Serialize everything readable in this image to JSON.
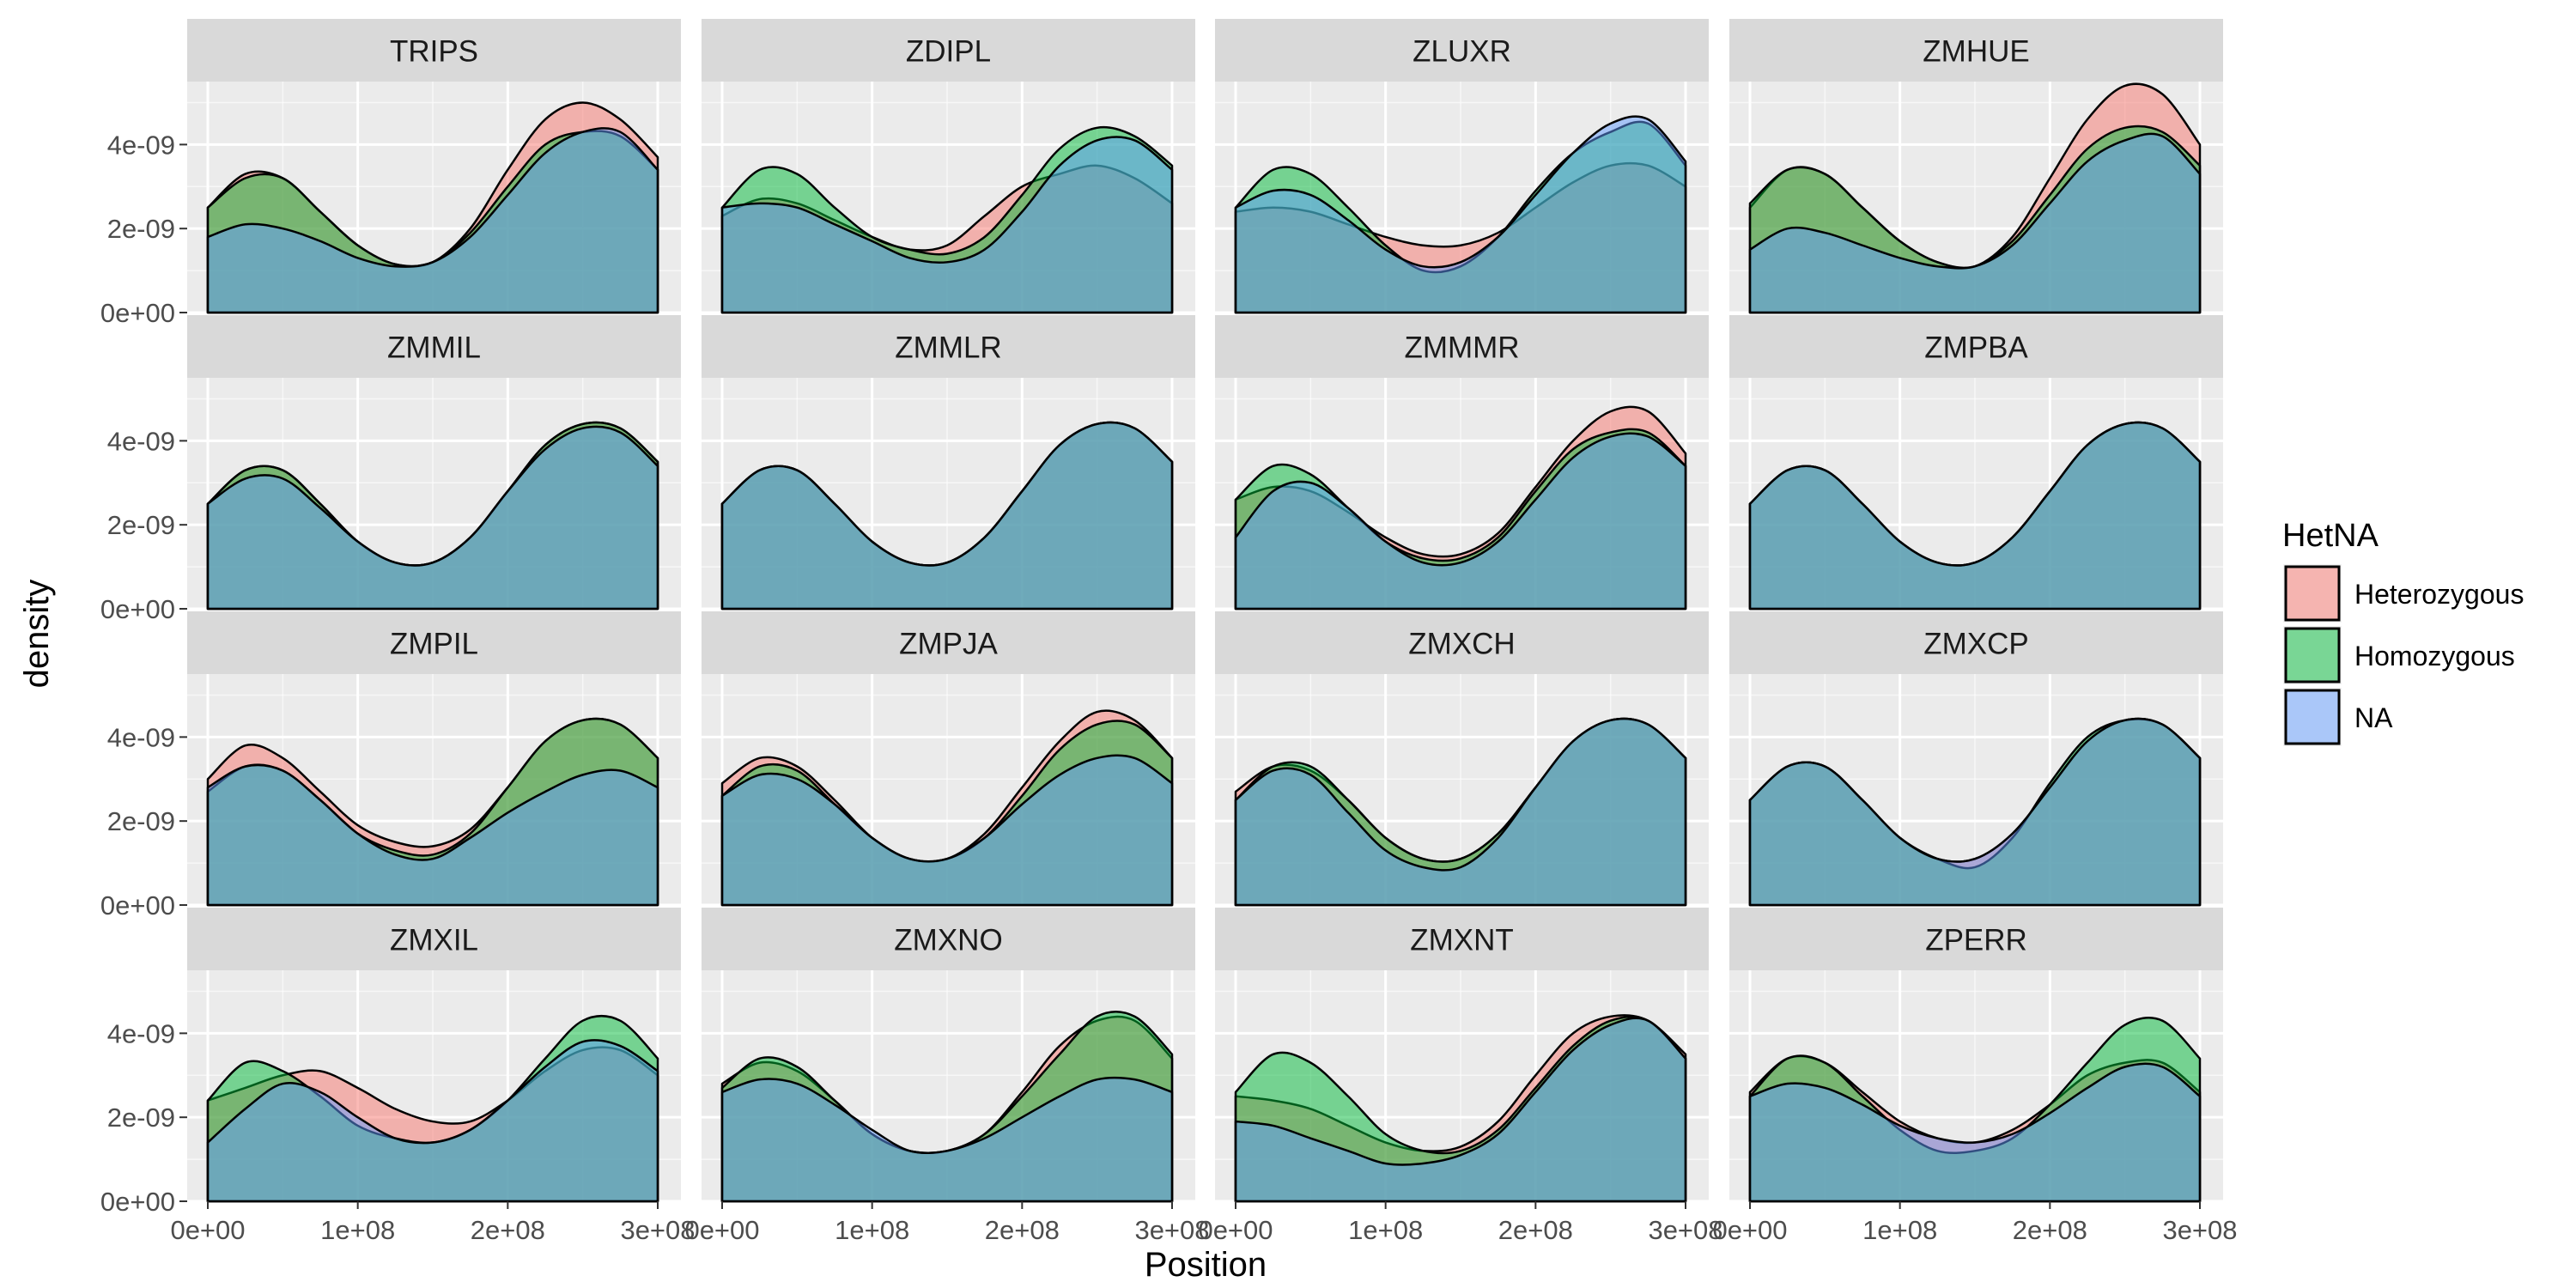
{
  "chart_data": {
    "type": "area",
    "xlabel": "Position",
    "ylabel": "density",
    "xlim": [
      0,
      300000000
    ],
    "ylim": [
      0,
      5.5e-09
    ],
    "x_ticks": [
      0,
      100000000,
      200000000,
      300000000
    ],
    "x_tick_labels": [
      "0e+00",
      "1e+08",
      "2e+08",
      "3e+08"
    ],
    "y_ticks": [
      0,
      2e-09,
      4e-09
    ],
    "y_tick_labels": [
      "0e+00",
      "2e-09",
      "4e-09"
    ],
    "x_sample": [
      0,
      25000000,
      50000000,
      75000000,
      100000000,
      125000000,
      150000000,
      175000000,
      200000000,
      225000000,
      250000000,
      275000000,
      300000000
    ],
    "legend": {
      "title": "HetNA",
      "position": "right",
      "entries": [
        {
          "label": "Heterozygous",
          "color": "#F8766D"
        },
        {
          "label": "Homozygous",
          "color": "#00BA38"
        },
        {
          "label": "NA",
          "color": "#619CFF"
        }
      ]
    },
    "colors": {
      "Heterozygous": "#F8766D",
      "Homozygous": "#00BA38",
      "NA": "#619CFF",
      "panel_bg": "#EBEBEB",
      "strip_bg": "#D9D9D9",
      "grid": "#FFFFFF"
    },
    "panels": [
      {
        "title": "TRIPS",
        "series": [
          {
            "group": "Heterozygous",
            "values": [
              2.5,
              3.3,
              3.2,
              2.4,
              1.6,
              1.15,
              1.2,
              2.0,
              3.4,
              4.6,
              5.0,
              4.6,
              3.7
            ]
          },
          {
            "group": "Homozygous",
            "values": [
              2.5,
              3.2,
              3.2,
              2.4,
              1.6,
              1.15,
              1.2,
              1.9,
              3.0,
              4.0,
              4.3,
              4.2,
              3.4
            ]
          },
          {
            "group": "NA",
            "values": [
              1.8,
              2.1,
              2.0,
              1.7,
              1.3,
              1.1,
              1.2,
              1.8,
              2.8,
              3.8,
              4.3,
              4.3,
              3.4
            ]
          }
        ]
      },
      {
        "title": "ZDIPL",
        "series": [
          {
            "group": "Heterozygous",
            "values": [
              2.3,
              2.7,
              2.6,
              2.2,
              1.8,
              1.5,
              1.6,
              2.3,
              3.0,
              3.3,
              3.5,
              3.2,
              2.6
            ]
          },
          {
            "group": "Homozygous",
            "values": [
              2.5,
              3.4,
              3.3,
              2.5,
              1.8,
              1.5,
              1.4,
              1.8,
              2.8,
              3.9,
              4.4,
              4.2,
              3.5
            ]
          },
          {
            "group": "NA",
            "values": [
              2.5,
              2.6,
              2.5,
              2.1,
              1.7,
              1.3,
              1.2,
              1.5,
              2.4,
              3.5,
              4.1,
              4.1,
              3.4
            ]
          }
        ]
      },
      {
        "title": "ZLUXR",
        "series": [
          {
            "group": "Heterozygous",
            "values": [
              2.4,
              2.5,
              2.4,
              2.1,
              1.8,
              1.6,
              1.6,
              1.9,
              2.5,
              3.1,
              3.5,
              3.5,
              3.0
            ]
          },
          {
            "group": "Homozygous",
            "values": [
              2.5,
              3.4,
              3.3,
              2.5,
              1.6,
              1.0,
              1.1,
              1.8,
              2.9,
              3.8,
              4.3,
              4.5,
              3.5
            ]
          },
          {
            "group": "NA",
            "values": [
              2.5,
              2.9,
              2.8,
              2.2,
              1.5,
              1.1,
              1.2,
              1.8,
              2.8,
              3.8,
              4.5,
              4.6,
              3.6
            ]
          }
        ]
      },
      {
        "title": "ZMHUE",
        "series": [
          {
            "group": "Heterozygous",
            "values": [
              2.5,
              3.4,
              3.3,
              2.5,
              1.7,
              1.2,
              1.1,
              1.8,
              3.2,
              4.6,
              5.4,
              5.2,
              4.0
            ]
          },
          {
            "group": "Homozygous",
            "values": [
              2.6,
              3.4,
              3.3,
              2.5,
              1.7,
              1.2,
              1.1,
              1.7,
              2.8,
              3.9,
              4.4,
              4.3,
              3.5
            ]
          },
          {
            "group": "NA",
            "values": [
              1.5,
              2.0,
              1.9,
              1.6,
              1.3,
              1.1,
              1.1,
              1.6,
              2.6,
              3.6,
              4.1,
              4.2,
              3.3
            ]
          }
        ]
      },
      {
        "title": "ZMMIL",
        "series": [
          {
            "group": "Heterozygous",
            "values": [
              2.5,
              3.3,
              3.3,
              2.5,
              1.6,
              1.1,
              1.1,
              1.7,
              2.8,
              3.9,
              4.4,
              4.3,
              3.5
            ]
          },
          {
            "group": "Homozygous",
            "values": [
              2.5,
              3.3,
              3.3,
              2.5,
              1.6,
              1.1,
              1.1,
              1.7,
              2.8,
              3.9,
              4.4,
              4.3,
              3.5
            ]
          },
          {
            "group": "NA",
            "values": [
              2.5,
              3.1,
              3.1,
              2.4,
              1.6,
              1.1,
              1.1,
              1.7,
              2.8,
              3.8,
              4.3,
              4.2,
              3.4
            ]
          }
        ]
      },
      {
        "title": "ZMMLR",
        "series": [
          {
            "group": "Heterozygous",
            "values": [
              2.5,
              3.3,
              3.3,
              2.5,
              1.6,
              1.1,
              1.1,
              1.7,
              2.8,
              3.9,
              4.4,
              4.3,
              3.5
            ]
          },
          {
            "group": "Homozygous",
            "values": [
              2.5,
              3.3,
              3.3,
              2.5,
              1.6,
              1.1,
              1.1,
              1.7,
              2.8,
              3.9,
              4.4,
              4.3,
              3.5
            ]
          },
          {
            "group": "NA",
            "values": [
              2.5,
              3.3,
              3.3,
              2.5,
              1.6,
              1.1,
              1.1,
              1.7,
              2.8,
              3.9,
              4.4,
              4.3,
              3.5
            ]
          }
        ]
      },
      {
        "title": "ZMMMR",
        "series": [
          {
            "group": "Heterozygous",
            "values": [
              2.6,
              2.9,
              2.8,
              2.3,
              1.7,
              1.3,
              1.3,
              1.8,
              2.9,
              4.0,
              4.7,
              4.7,
              3.7
            ]
          },
          {
            "group": "Homozygous",
            "values": [
              2.6,
              3.4,
              3.2,
              2.4,
              1.6,
              1.2,
              1.2,
              1.7,
              2.8,
              3.8,
              4.2,
              4.2,
              3.4
            ]
          },
          {
            "group": "NA",
            "values": [
              1.7,
              2.8,
              3.0,
              2.4,
              1.6,
              1.1,
              1.1,
              1.6,
              2.6,
              3.6,
              4.1,
              4.1,
              3.4
            ]
          }
        ]
      },
      {
        "title": "ZMPBA",
        "series": [
          {
            "group": "Heterozygous",
            "values": [
              2.5,
              3.3,
              3.3,
              2.5,
              1.6,
              1.1,
              1.1,
              1.7,
              2.8,
              3.9,
              4.4,
              4.3,
              3.5
            ]
          },
          {
            "group": "Homozygous",
            "values": [
              2.5,
              3.3,
              3.3,
              2.5,
              1.6,
              1.1,
              1.1,
              1.7,
              2.8,
              3.9,
              4.4,
              4.3,
              3.5
            ]
          },
          {
            "group": "NA",
            "values": [
              2.5,
              3.3,
              3.3,
              2.5,
              1.6,
              1.1,
              1.1,
              1.7,
              2.8,
              3.9,
              4.4,
              4.3,
              3.5
            ]
          }
        ]
      },
      {
        "title": "ZMPIL",
        "series": [
          {
            "group": "Heterozygous",
            "values": [
              3.0,
              3.8,
              3.5,
              2.7,
              1.9,
              1.5,
              1.4,
              1.8,
              2.8,
              3.9,
              4.4,
              4.3,
              3.5
            ]
          },
          {
            "group": "Homozygous",
            "values": [
              2.7,
              3.3,
              3.2,
              2.5,
              1.7,
              1.3,
              1.2,
              1.7,
              2.8,
              3.9,
              4.4,
              4.3,
              3.5
            ]
          },
          {
            "group": "NA",
            "values": [
              2.8,
              3.3,
              3.2,
              2.5,
              1.7,
              1.2,
              1.1,
              1.6,
              2.2,
              2.7,
              3.1,
              3.2,
              2.8
            ]
          }
        ]
      },
      {
        "title": "ZMPJA",
        "series": [
          {
            "group": "Heterozygous",
            "values": [
              2.9,
              3.5,
              3.3,
              2.5,
              1.6,
              1.1,
              1.1,
              1.7,
              2.8,
              3.9,
              4.6,
              4.4,
              3.5
            ]
          },
          {
            "group": "Homozygous",
            "values": [
              2.6,
              3.3,
              3.2,
              2.4,
              1.6,
              1.1,
              1.1,
              1.6,
              2.6,
              3.7,
              4.3,
              4.3,
              3.5
            ]
          },
          {
            "group": "NA",
            "values": [
              2.6,
              3.1,
              3.0,
              2.4,
              1.6,
              1.1,
              1.1,
              1.6,
              2.4,
              3.1,
              3.5,
              3.5,
              2.9
            ]
          }
        ]
      },
      {
        "title": "ZMXCH",
        "series": [
          {
            "group": "Heterozygous",
            "values": [
              2.7,
              3.3,
              3.2,
              2.5,
              1.6,
              1.1,
              1.1,
              1.7,
              2.8,
              3.9,
              4.4,
              4.3,
              3.5
            ]
          },
          {
            "group": "Homozygous",
            "values": [
              2.5,
              3.3,
              3.3,
              2.5,
              1.6,
              1.1,
              1.1,
              1.7,
              2.8,
              3.9,
              4.4,
              4.3,
              3.5
            ]
          },
          {
            "group": "NA",
            "values": [
              2.5,
              3.2,
              3.1,
              2.2,
              1.3,
              0.9,
              0.9,
              1.6,
              2.8,
              3.9,
              4.4,
              4.3,
              3.5
            ]
          }
        ]
      },
      {
        "title": "ZMXCP",
        "series": [
          {
            "group": "Heterozygous",
            "values": [
              2.5,
              3.3,
              3.3,
              2.5,
              1.6,
              1.1,
              1.1,
              1.7,
              2.8,
              3.9,
              4.4,
              4.3,
              3.5
            ]
          },
          {
            "group": "Homozygous",
            "values": [
              2.5,
              3.3,
              3.3,
              2.5,
              1.6,
              1.1,
              0.9,
              1.6,
              2.9,
              4.0,
              4.4,
              4.3,
              3.5
            ]
          },
          {
            "group": "NA",
            "values": [
              2.5,
              3.3,
              3.3,
              2.5,
              1.6,
              1.1,
              1.1,
              1.7,
              2.8,
              3.9,
              4.4,
              4.3,
              3.5
            ]
          }
        ]
      },
      {
        "title": "ZMXIL",
        "series": [
          {
            "group": "Heterozygous",
            "values": [
              2.4,
              2.7,
              3.0,
              3.1,
              2.7,
              2.2,
              1.9,
              1.9,
              2.4,
              3.1,
              3.6,
              3.6,
              3.0
            ]
          },
          {
            "group": "Homozygous",
            "values": [
              2.4,
              3.3,
              3.1,
              2.5,
              1.8,
              1.5,
              1.4,
              1.7,
              2.4,
              3.4,
              4.3,
              4.3,
              3.4
            ]
          },
          {
            "group": "NA",
            "values": [
              1.4,
              2.2,
              2.8,
              2.6,
              2.0,
              1.5,
              1.4,
              1.7,
              2.4,
              3.2,
              3.8,
              3.7,
              3.1
            ]
          }
        ]
      },
      {
        "title": "ZMXNO",
        "series": [
          {
            "group": "Heterozygous",
            "values": [
              2.8,
              3.3,
              3.1,
              2.4,
              1.6,
              1.2,
              1.2,
              1.6,
              2.6,
              3.7,
              4.3,
              4.3,
              3.4
            ]
          },
          {
            "group": "Homozygous",
            "values": [
              2.7,
              3.4,
              3.2,
              2.4,
              1.6,
              1.2,
              1.2,
              1.6,
              2.5,
              3.5,
              4.4,
              4.4,
              3.5
            ]
          },
          {
            "group": "NA",
            "values": [
              2.6,
              2.9,
              2.8,
              2.3,
              1.7,
              1.2,
              1.2,
              1.5,
              2.0,
              2.5,
              2.9,
              2.9,
              2.6
            ]
          }
        ]
      },
      {
        "title": "ZMXNT",
        "series": [
          {
            "group": "Heterozygous",
            "values": [
              2.5,
              2.4,
              2.2,
              1.8,
              1.4,
              1.2,
              1.3,
              1.9,
              3.0,
              4.0,
              4.4,
              4.3,
              3.5
            ]
          },
          {
            "group": "Homozygous",
            "values": [
              2.6,
              3.5,
              3.3,
              2.5,
              1.6,
              1.2,
              1.2,
              1.7,
              2.7,
              3.7,
              4.3,
              4.3,
              3.4
            ]
          },
          {
            "group": "NA",
            "values": [
              1.9,
              1.8,
              1.5,
              1.2,
              0.9,
              0.9,
              1.1,
              1.6,
              2.6,
              3.6,
              4.2,
              4.3,
              3.4
            ]
          }
        ]
      },
      {
        "title": "ZPERR",
        "series": [
          {
            "group": "Heterozygous",
            "values": [
              2.6,
              3.4,
              3.3,
              2.6,
              1.9,
              1.5,
              1.4,
              1.7,
              2.3,
              3.0,
              3.3,
              3.3,
              2.6
            ]
          },
          {
            "group": "Homozygous",
            "values": [
              2.5,
              3.4,
              3.3,
              2.5,
              1.7,
              1.2,
              1.2,
              1.5,
              2.3,
              3.3,
              4.2,
              4.3,
              3.4
            ]
          },
          {
            "group": "NA",
            "values": [
              2.5,
              2.8,
              2.7,
              2.3,
              1.8,
              1.5,
              1.4,
              1.6,
              2.1,
              2.7,
              3.2,
              3.2,
              2.5
            ]
          }
        ]
      }
    ]
  }
}
